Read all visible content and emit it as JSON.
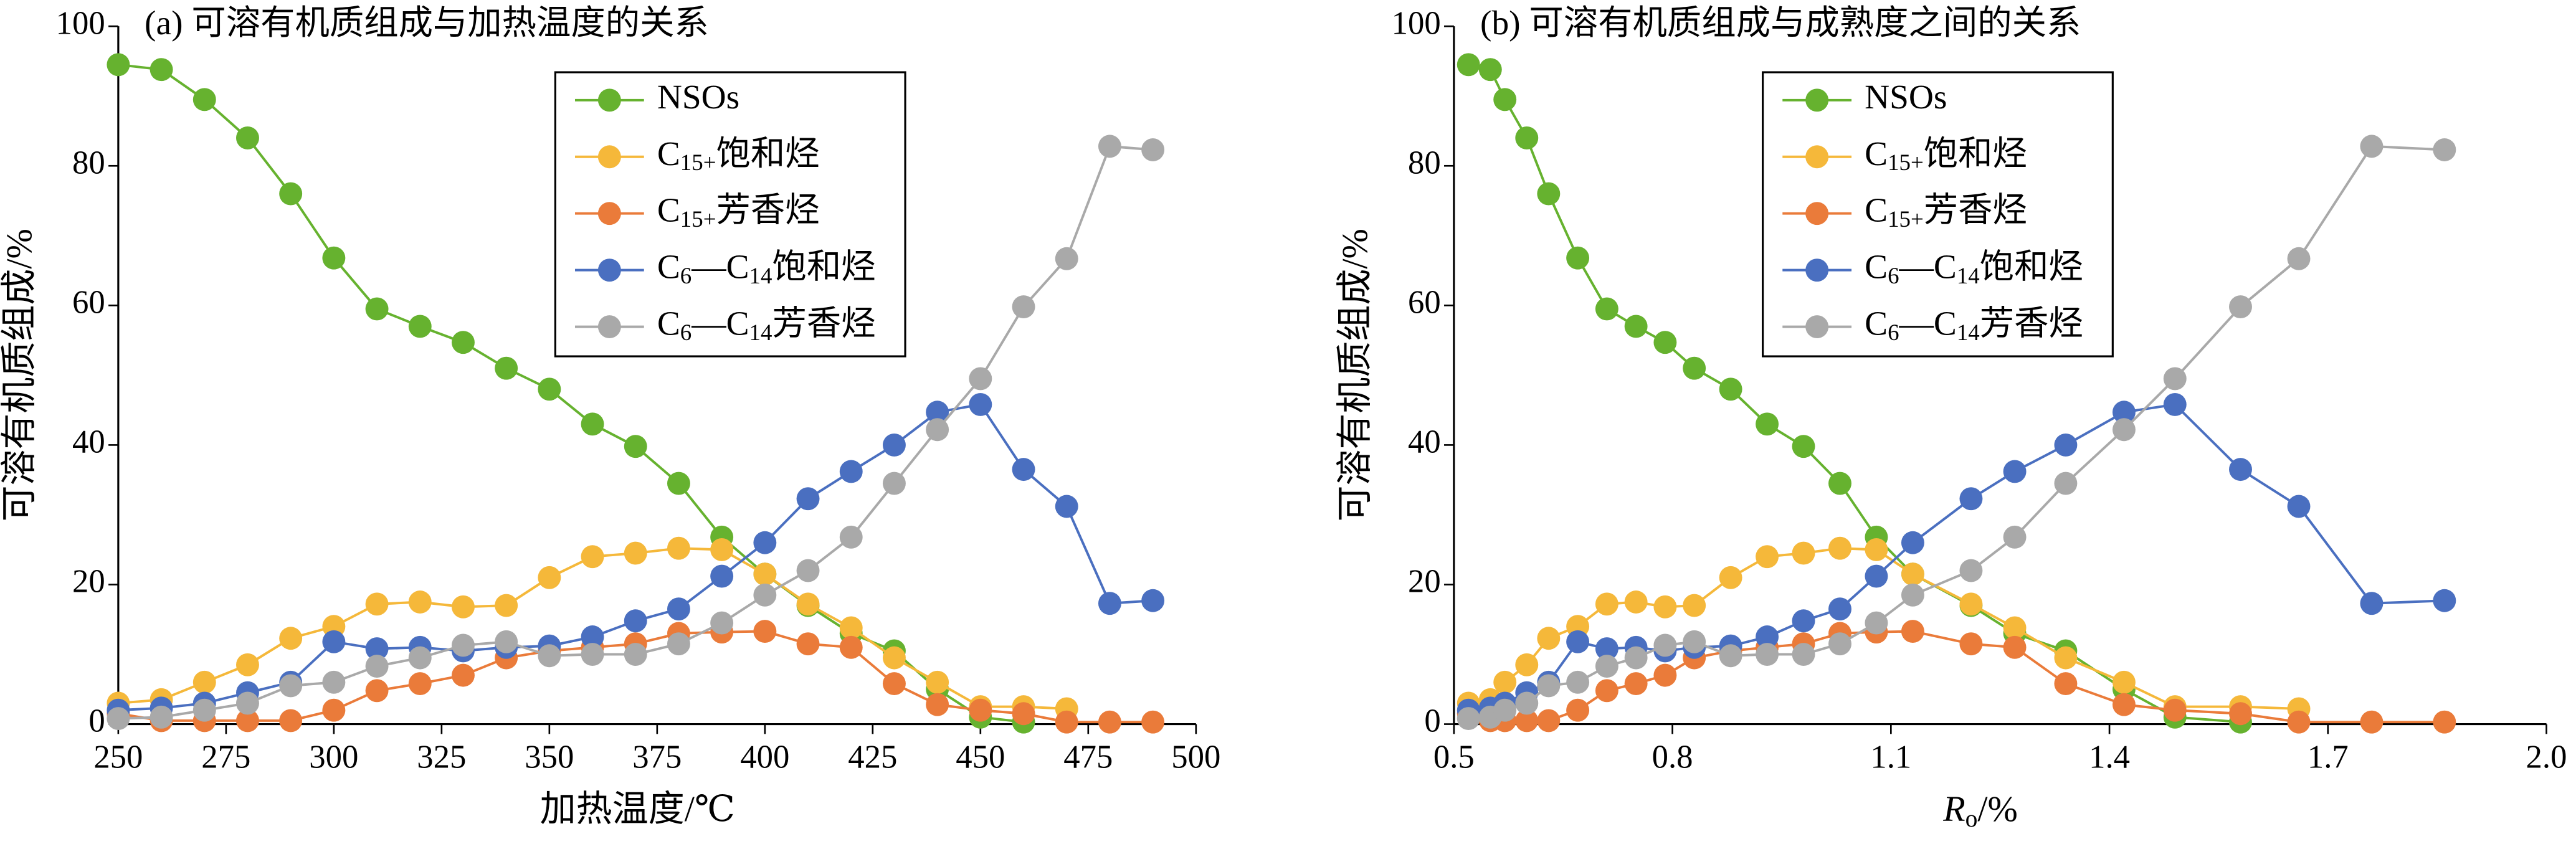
{
  "chart_data": [
    {
      "type": "line",
      "title": "(a) 可溶有机质组成与加热温度的关系",
      "x_label": "加热温度/℃",
      "y_label": "可溶有机质组成/%",
      "x": [
        250,
        260,
        270,
        280,
        290,
        300,
        310,
        320,
        330,
        340,
        350,
        360,
        370,
        380,
        390,
        400,
        410,
        420,
        430,
        440,
        450,
        460,
        470,
        480,
        490
      ],
      "xlim": [
        250,
        500
      ],
      "xticks": [
        250,
        275,
        300,
        325,
        350,
        375,
        400,
        425,
        450,
        475,
        500
      ],
      "ylim": [
        0,
        100
      ],
      "yticks": [
        0,
        20,
        40,
        60,
        80,
        100
      ],
      "grid": false,
      "legend": "top-right",
      "series": [
        {
          "name": "NSOs",
          "color": "#66b22f",
          "values": [
            94.5,
            93.8,
            89.5,
            84,
            76,
            66.8,
            59.5,
            57,
            54.7,
            51,
            48,
            43,
            39.8,
            34.5,
            26.8,
            21.5,
            17,
            13,
            10.5,
            5,
            1,
            0.3,
            null,
            null,
            null
          ]
        },
        {
          "name": "C15+饱和烃",
          "color": "#f5b83a",
          "values": [
            3,
            3.5,
            6,
            8.5,
            12.3,
            14,
            17.2,
            17.5,
            16.8,
            17,
            21,
            24,
            24.5,
            25.2,
            25,
            21.5,
            17.2,
            13.8,
            9.5,
            6,
            2.5,
            2.5,
            2.2,
            null,
            null
          ]
        },
        {
          "name": "C15+芳香烃",
          "color": "#ea7b3a",
          "values": [
            1.5,
            0.5,
            0.5,
            0.5,
            0.5,
            2,
            4.8,
            5.8,
            7,
            9.5,
            10.5,
            11,
            11.5,
            13,
            13.2,
            13.3,
            11.5,
            11,
            5.8,
            2.8,
            2,
            1.5,
            0.3,
            0.3,
            0.3
          ]
        },
        {
          "name": "C6—C14饱和烃",
          "color": "#4a6fc0",
          "values": [
            2,
            2.3,
            3,
            4.5,
            6,
            11.8,
            10.8,
            11,
            10.5,
            11,
            11.2,
            12.5,
            14.8,
            16.5,
            21.2,
            26,
            32.3,
            36.2,
            40,
            44.7,
            45.8,
            36.5,
            31.2,
            17.3,
            17.7
          ]
        },
        {
          "name": "C6—C14芳香烃",
          "color": "#a9a9a9",
          "values": [
            0.8,
            1,
            2,
            3,
            5.5,
            6,
            8.3,
            9.5,
            11.3,
            11.8,
            9.8,
            10,
            10,
            11.5,
            14.5,
            18.5,
            22,
            26.8,
            34.5,
            42.2,
            49.5,
            59.8,
            66.7,
            82.8,
            82.3
          ]
        }
      ]
    },
    {
      "type": "line",
      "title": "(b) 可溶有机质组成与成熟度之间的关系",
      "x_label": "Ro/%",
      "y_label": "可溶有机质组成/%",
      "x": [
        0.52,
        0.55,
        0.57,
        0.6,
        0.63,
        0.67,
        0.71,
        0.75,
        0.79,
        0.83,
        0.88,
        0.93,
        0.98,
        1.03,
        1.08,
        1.13,
        1.21,
        1.27,
        1.34,
        1.42,
        1.49,
        1.58,
        1.66,
        1.76,
        1.86
      ],
      "xlim": [
        0.5,
        2.0
      ],
      "xticks": [
        0.5,
        0.8,
        1.1,
        1.4,
        1.7,
        {
          "value": 2,
          "label": "2.0"
        }
      ],
      "ylim": [
        0,
        100
      ],
      "yticks": [
        0,
        20,
        40,
        60,
        80,
        100
      ],
      "grid": false,
      "legend": "top-right",
      "series": [
        {
          "name": "NSOs",
          "color": "#66b22f",
          "values": [
            94.5,
            93.8,
            89.5,
            84,
            76,
            66.8,
            59.5,
            57,
            54.7,
            51,
            48,
            43,
            39.8,
            34.5,
            26.8,
            21.5,
            17,
            13,
            10.5,
            5,
            1,
            0.3,
            null,
            null,
            null
          ]
        },
        {
          "name": "C15+饱和烃",
          "color": "#f5b83a",
          "values": [
            3,
            3.5,
            6,
            8.5,
            12.3,
            14,
            17.2,
            17.5,
            16.8,
            17,
            21,
            24,
            24.5,
            25.2,
            25,
            21.5,
            17.2,
            13.8,
            9.5,
            6,
            2.5,
            2.5,
            2.2,
            null,
            null
          ]
        },
        {
          "name": "C15+芳香烃",
          "color": "#ea7b3a",
          "values": [
            1.5,
            0.5,
            0.5,
            0.5,
            0.5,
            2,
            4.8,
            5.8,
            7,
            9.5,
            10.5,
            11,
            11.5,
            13,
            13.2,
            13.3,
            11.5,
            11,
            5.8,
            2.8,
            2,
            1.5,
            0.3,
            0.3,
            0.3
          ]
        },
        {
          "name": "C6—C14饱和烃",
          "color": "#4a6fc0",
          "values": [
            2,
            2.3,
            3,
            4.5,
            6,
            11.8,
            10.8,
            11,
            10.5,
            11,
            11.2,
            12.5,
            14.8,
            16.5,
            21.2,
            26,
            32.3,
            36.2,
            40,
            44.7,
            45.8,
            36.5,
            31.2,
            17.3,
            17.7
          ]
        },
        {
          "name": "C6—C14芳香烃",
          "color": "#a9a9a9",
          "values": [
            0.8,
            1,
            2,
            3,
            5.5,
            6,
            8.3,
            9.5,
            11.3,
            11.8,
            9.8,
            10,
            10,
            11.5,
            14.5,
            18.5,
            22,
            26.8,
            34.5,
            42.2,
            49.5,
            59.8,
            66.7,
            82.8,
            82.3
          ]
        }
      ]
    }
  ]
}
